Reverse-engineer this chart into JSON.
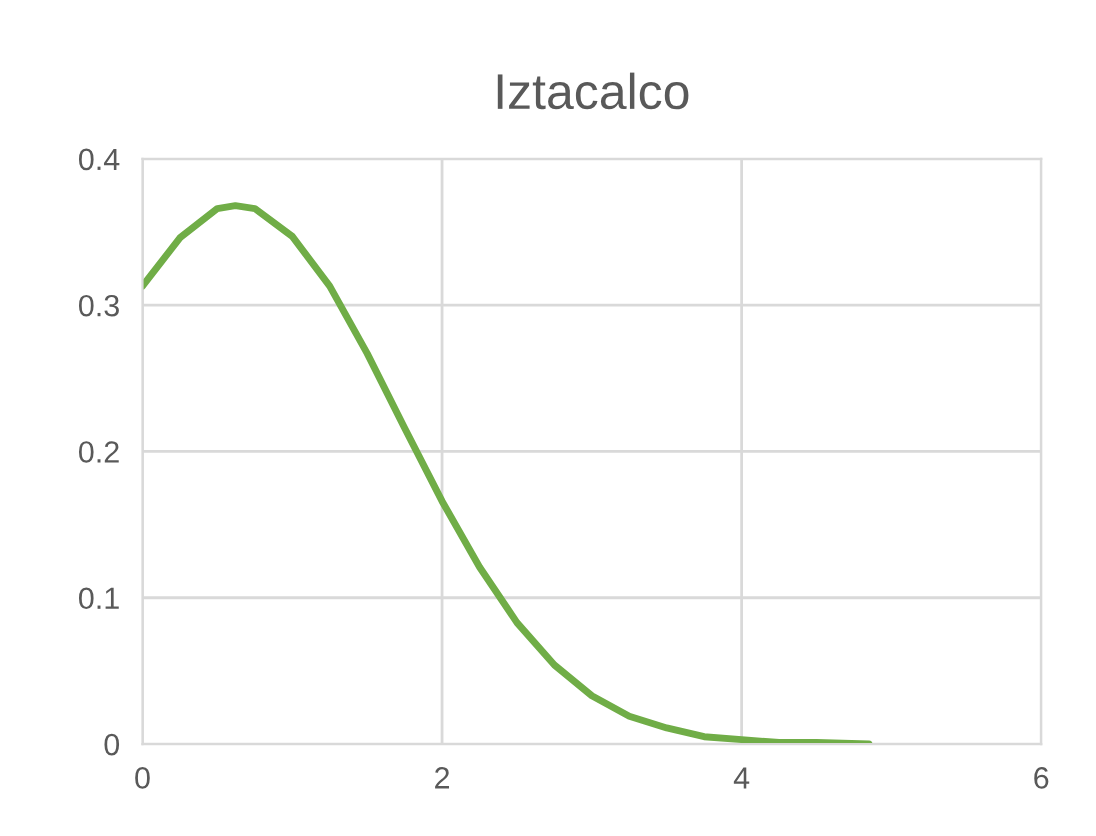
{
  "chart_data": {
    "type": "line",
    "title": "Iztacalco",
    "series": [
      {
        "color": "#70ad47",
        "x": [
          0,
          0.25,
          0.5,
          0.62,
          0.75,
          1.0,
          1.25,
          1.5,
          1.75,
          2.0,
          2.25,
          2.5,
          2.75,
          3.0,
          3.25,
          3.5,
          3.75,
          4.0,
          4.25,
          4.5,
          4.85
        ],
        "values": [
          0.313,
          0.346,
          0.366,
          0.368,
          0.366,
          0.347,
          0.313,
          0.267,
          0.216,
          0.166,
          0.121,
          0.083,
          0.054,
          0.033,
          0.019,
          0.011,
          0.005,
          0.003,
          0.001,
          0.001,
          0
        ]
      }
    ],
    "xlim": [
      0,
      6
    ],
    "xticks": [
      0,
      2,
      4,
      6
    ],
    "ylim": [
      0,
      0.4
    ],
    "yticks": [
      0,
      0.1,
      0.2,
      0.3,
      0.4
    ],
    "grid": true,
    "marker": "none",
    "line_style": "solid"
  }
}
